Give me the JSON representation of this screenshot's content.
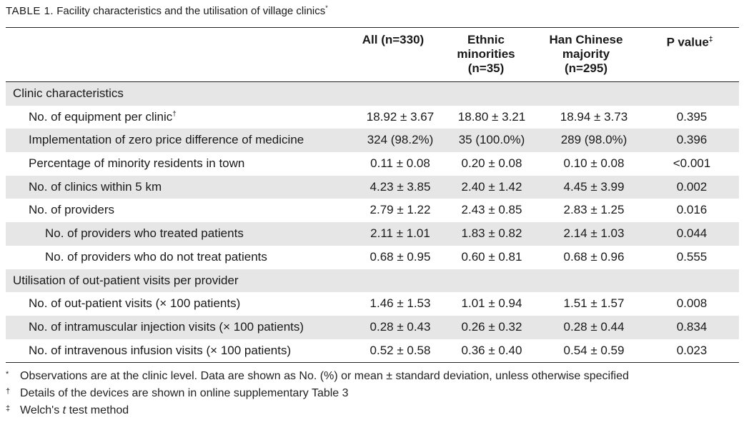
{
  "caption": {
    "label": "TABLE 1.",
    "title": "Facility characteristics and the utilisation of village clinics",
    "marker": "*"
  },
  "columns": {
    "all": [
      "All (n=330)"
    ],
    "ethnic": [
      "Ethnic",
      "minorities",
      "(n=35)"
    ],
    "han": [
      "Han Chinese",
      "majority",
      "(n=295)"
    ],
    "p": [
      "P value",
      "‡"
    ]
  },
  "rows": [
    {
      "label": "Clinic characteristics",
      "sup": "",
      "level": 0,
      "shade": true,
      "all": "",
      "ethnic": "",
      "han": "",
      "p": ""
    },
    {
      "label": "No. of equipment per clinic",
      "sup": "†",
      "level": 1,
      "shade": false,
      "all": "18.92 ± 3.67",
      "ethnic": "18.80 ± 3.21",
      "han": "18.94 ± 3.73",
      "p": "0.395"
    },
    {
      "label": "Implementation of zero price difference of medicine",
      "sup": "",
      "level": 1,
      "shade": true,
      "all": "324 (98.2%)",
      "ethnic": "35 (100.0%)",
      "han": "289 (98.0%)",
      "p": "0.396"
    },
    {
      "label": "Percentage of minority residents in town",
      "sup": "",
      "level": 1,
      "shade": false,
      "all": "0.11 ± 0.08",
      "ethnic": "0.20 ± 0.08",
      "han": "0.10 ± 0.08",
      "p": "<0.001"
    },
    {
      "label": "No. of clinics within 5 km",
      "sup": "",
      "level": 1,
      "shade": true,
      "all": "4.23 ± 3.85",
      "ethnic": "2.40 ± 1.42",
      "han": "4.45 ± 3.99",
      "p": "0.002"
    },
    {
      "label": "No. of providers",
      "sup": "",
      "level": 1,
      "shade": false,
      "all": "2.79 ± 1.22",
      "ethnic": "2.43 ± 0.85",
      "han": "2.83 ± 1.25",
      "p": "0.016"
    },
    {
      "label": "No. of providers who treated patients",
      "sup": "",
      "level": 2,
      "shade": true,
      "all": "2.11 ± 1.01",
      "ethnic": "1.83 ± 0.82",
      "han": "2.14 ± 1.03",
      "p": "0.044"
    },
    {
      "label": "No. of providers who do not treat patients",
      "sup": "",
      "level": 2,
      "shade": false,
      "all": "0.68 ± 0.95",
      "ethnic": "0.60 ± 0.81",
      "han": "0.68 ± 0.96",
      "p": "0.555"
    },
    {
      "label": "Utilisation of out-patient visits per provider",
      "sup": "",
      "level": 0,
      "shade": true,
      "all": "",
      "ethnic": "",
      "han": "",
      "p": ""
    },
    {
      "label": "No. of out-patient visits (× 100 patients)",
      "sup": "",
      "level": 1,
      "shade": false,
      "all": "1.46 ± 1.53",
      "ethnic": "1.01 ± 0.94",
      "han": "1.51 ± 1.57",
      "p": "0.008"
    },
    {
      "label": "No. of intramuscular injection visits (× 100 patients)",
      "sup": "",
      "level": 1,
      "shade": true,
      "all": "0.28 ± 0.43",
      "ethnic": "0.26 ± 0.32",
      "han": "0.28 ± 0.44",
      "p": "0.834"
    },
    {
      "label": "No. of intravenous infusion visits (× 100 patients)",
      "sup": "",
      "level": 1,
      "shade": false,
      "all": "0.52 ± 0.58",
      "ethnic": "0.36 ± 0.40",
      "han": "0.54 ± 0.59",
      "p": "0.023"
    }
  ],
  "footnotes": [
    {
      "marker": "*",
      "text": "Observations are at the clinic level. Data are shown as No. (%) or mean ± standard deviation, unless otherwise specified"
    },
    {
      "marker": "†",
      "text": "Details of the devices are shown in online supplementary Table 3"
    },
    {
      "marker": "‡",
      "text_before": "Welch's ",
      "text_italic": "t",
      "text_after": " test method"
    }
  ]
}
